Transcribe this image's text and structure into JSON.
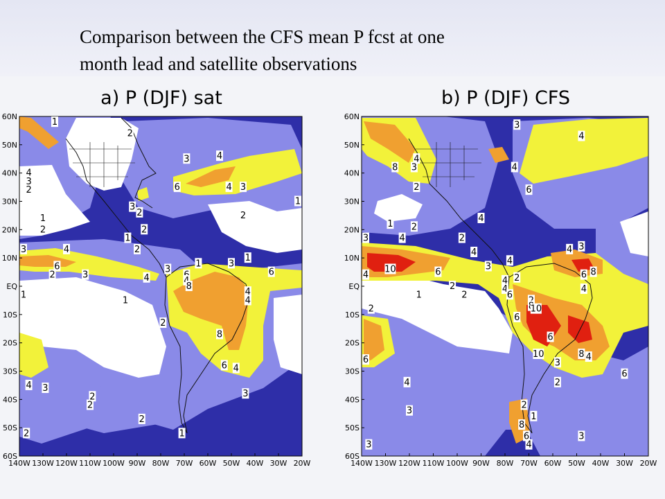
{
  "slide": {
    "title_line1": "Comparison between the CFS  mean P fcst at one",
    "title_line2": "month lead and satellite observations"
  },
  "colors": {
    "deep_blue": "#2e2ea8",
    "light_blue": "#8a8ae8",
    "mid_blue": "#6a6ad8",
    "white": "#ffffff",
    "yellow": "#f2f23a",
    "orange": "#f0a030",
    "red": "#e02010"
  },
  "chart_data": [
    {
      "type": "heatmap",
      "title": "a) P (DJF) sat",
      "x_ticks": [
        "140W",
        "130W",
        "120W",
        "110W",
        "100W",
        "90W",
        "80W",
        "70W",
        "60W",
        "50W",
        "40W",
        "30W",
        "20W"
      ],
      "y_ticks": [
        "60N",
        "50N",
        "40N",
        "30N",
        "20N",
        "10N",
        "EQ",
        "10S",
        "20S",
        "30S",
        "40S",
        "50S",
        "60S"
      ],
      "xlim": [
        -140,
        -20
      ],
      "ylim": [
        -60,
        60
      ],
      "contour_levels": [
        1,
        2,
        3,
        4,
        6,
        8,
        10
      ],
      "contour_labels": [
        {
          "text": "1",
          "lon": -125,
          "lat": 58
        },
        {
          "text": "2",
          "lon": -93,
          "lat": 54
        },
        {
          "text": "3",
          "lon": -69,
          "lat": 45
        },
        {
          "text": "4",
          "lon": -55,
          "lat": 46
        },
        {
          "text": "4",
          "lon": -136,
          "lat": 40
        },
        {
          "text": "3",
          "lon": -136,
          "lat": 37
        },
        {
          "text": "2",
          "lon": -136,
          "lat": 34
        },
        {
          "text": "6",
          "lon": -73,
          "lat": 35
        },
        {
          "text": "4",
          "lon": -51,
          "lat": 35
        },
        {
          "text": "3",
          "lon": -45,
          "lat": 35
        },
        {
          "text": "1",
          "lon": -21,
          "lat": 30
        },
        {
          "text": "3",
          "lon": -92,
          "lat": 28
        },
        {
          "text": "2",
          "lon": -89,
          "lat": 26
        },
        {
          "text": "2",
          "lon": -45,
          "lat": 25
        },
        {
          "text": "1",
          "lon": -130,
          "lat": 24
        },
        {
          "text": "2",
          "lon": -130,
          "lat": 20
        },
        {
          "text": "2",
          "lon": -87,
          "lat": 20
        },
        {
          "text": "1",
          "lon": -94,
          "lat": 17
        },
        {
          "text": "2",
          "lon": -90,
          "lat": 13
        },
        {
          "text": "3",
          "lon": -141,
          "lat": 13
        },
        {
          "text": "4",
          "lon": -120,
          "lat": 13
        },
        {
          "text": "1",
          "lon": -64,
          "lat": 8
        },
        {
          "text": "1",
          "lon": -43,
          "lat": 10
        },
        {
          "text": "3",
          "lon": -50,
          "lat": 8
        },
        {
          "text": "3",
          "lon": -77,
          "lat": 6
        },
        {
          "text": "6",
          "lon": -124,
          "lat": 7
        },
        {
          "text": "2",
          "lon": -126,
          "lat": 4
        },
        {
          "text": "3",
          "lon": -112,
          "lat": 4
        },
        {
          "text": "6",
          "lon": -69,
          "lat": 4
        },
        {
          "text": "6",
          "lon": -33,
          "lat": 5
        },
        {
          "text": "4",
          "lon": -86,
          "lat": 3
        },
        {
          "text": "4",
          "lon": -69,
          "lat": 2
        },
        {
          "text": "8",
          "lon": -68,
          "lat": 0
        },
        {
          "text": "1",
          "lon": -142,
          "lat": -3
        },
        {
          "text": "1",
          "lon": -95,
          "lat": -5
        },
        {
          "text": "4",
          "lon": -43,
          "lat": -2
        },
        {
          "text": "4",
          "lon": -43,
          "lat": -5
        },
        {
          "text": "2",
          "lon": -79,
          "lat": -13
        },
        {
          "text": "8",
          "lon": -55,
          "lat": -17
        },
        {
          "text": "6",
          "lon": -53,
          "lat": -28
        },
        {
          "text": "4",
          "lon": -48,
          "lat": -29
        },
        {
          "text": "4",
          "lon": -136,
          "lat": -35
        },
        {
          "text": "3",
          "lon": -129,
          "lat": -36
        },
        {
          "text": "3",
          "lon": -44,
          "lat": -38
        },
        {
          "text": "2",
          "lon": -109,
          "lat": -39
        },
        {
          "text": "2",
          "lon": -110,
          "lat": -42
        },
        {
          "text": "2",
          "lon": -88,
          "lat": -47
        },
        {
          "text": "2",
          "lon": -137,
          "lat": -52
        },
        {
          "text": "1",
          "lon": -71,
          "lat": -52
        }
      ]
    },
    {
      "type": "heatmap",
      "title": "b) P (DJF) CFS",
      "x_ticks": [
        "140W",
        "130W",
        "120W",
        "110W",
        "100W",
        "90W",
        "80W",
        "70W",
        "60W",
        "50W",
        "40W",
        "30W",
        "20W"
      ],
      "y_ticks": [
        "60N",
        "50N",
        "40N",
        "30N",
        "20N",
        "10N",
        "EQ",
        "10S",
        "20S",
        "30S",
        "40S",
        "50S",
        "60S"
      ],
      "xlim": [
        -140,
        -20
      ],
      "ylim": [
        -60,
        60
      ],
      "contour_levels": [
        1,
        2,
        3,
        4,
        6,
        8,
        10
      ],
      "contour_labels": [
        {
          "text": "3",
          "lon": -75,
          "lat": 57
        },
        {
          "text": "4",
          "lon": -48,
          "lat": 53
        },
        {
          "text": "4",
          "lon": -117,
          "lat": 45
        },
        {
          "text": "8",
          "lon": -126,
          "lat": 42
        },
        {
          "text": "3",
          "lon": -118,
          "lat": 42
        },
        {
          "text": "4",
          "lon": -76,
          "lat": 42
        },
        {
          "text": "2",
          "lon": -117,
          "lat": 35
        },
        {
          "text": "6",
          "lon": -70,
          "lat": 34
        },
        {
          "text": "1",
          "lon": -128,
          "lat": 22
        },
        {
          "text": "2",
          "lon": -118,
          "lat": 21
        },
        {
          "text": "4",
          "lon": -90,
          "lat": 24
        },
        {
          "text": "3",
          "lon": -139,
          "lat": 17
        },
        {
          "text": "4",
          "lon": -123,
          "lat": 17
        },
        {
          "text": "2",
          "lon": -98,
          "lat": 17
        },
        {
          "text": "4",
          "lon": -93,
          "lat": 12
        },
        {
          "text": "4",
          "lon": -53,
          "lat": 13
        },
        {
          "text": "3",
          "lon": -48,
          "lat": 14
        },
        {
          "text": "4",
          "lon": -78,
          "lat": 9
        },
        {
          "text": "10",
          "lon": -128,
          "lat": 6
        },
        {
          "text": "3",
          "lon": -87,
          "lat": 7
        },
        {
          "text": "6",
          "lon": -108,
          "lat": 5
        },
        {
          "text": "4",
          "lon": -140,
          "lat": 4
        },
        {
          "text": "6",
          "lon": -47,
          "lat": 4
        },
        {
          "text": "8",
          "lon": -43,
          "lat": 5
        },
        {
          "text": "4",
          "lon": -80,
          "lat": 2
        },
        {
          "text": "2",
          "lon": -75,
          "lat": 3
        },
        {
          "text": "2",
          "lon": -102,
          "lat": 0
        },
        {
          "text": "4",
          "lon": -80,
          "lat": -1
        },
        {
          "text": "4",
          "lon": -47,
          "lat": -1
        },
        {
          "text": "1",
          "lon": -116,
          "lat": -3
        },
        {
          "text": "6",
          "lon": -78,
          "lat": -3
        },
        {
          "text": "2",
          "lon": -97,
          "lat": -3
        },
        {
          "text": "2",
          "lon": -69,
          "lat": -5
        },
        {
          "text": "8",
          "lon": -69,
          "lat": -7
        },
        {
          "text": "10",
          "lon": -67,
          "lat": -8
        },
        {
          "text": "2",
          "lon": -136,
          "lat": -8
        },
        {
          "text": "6",
          "lon": -75,
          "lat": -11
        },
        {
          "text": "6",
          "lon": -61,
          "lat": -18
        },
        {
          "text": "8",
          "lon": -48,
          "lat": -24
        },
        {
          "text": "4",
          "lon": -45,
          "lat": -25
        },
        {
          "text": "10",
          "lon": -66,
          "lat": -24
        },
        {
          "text": "3",
          "lon": -58,
          "lat": -27
        },
        {
          "text": "6",
          "lon": -140,
          "lat": -26
        },
        {
          "text": "6",
          "lon": -30,
          "lat": -31
        },
        {
          "text": "2",
          "lon": -58,
          "lat": -34
        },
        {
          "text": "4",
          "lon": -121,
          "lat": -34
        },
        {
          "text": "2",
          "lon": -72,
          "lat": -42
        },
        {
          "text": "3",
          "lon": -120,
          "lat": -44
        },
        {
          "text": "1",
          "lon": -68,
          "lat": -46
        },
        {
          "text": "8",
          "lon": -73,
          "lat": -49
        },
        {
          "text": "6",
          "lon": -71,
          "lat": -53
        },
        {
          "text": "4",
          "lon": -70,
          "lat": -56
        },
        {
          "text": "3",
          "lon": -48,
          "lat": -53
        },
        {
          "text": "3",
          "lon": -137,
          "lat": -56
        }
      ]
    }
  ]
}
